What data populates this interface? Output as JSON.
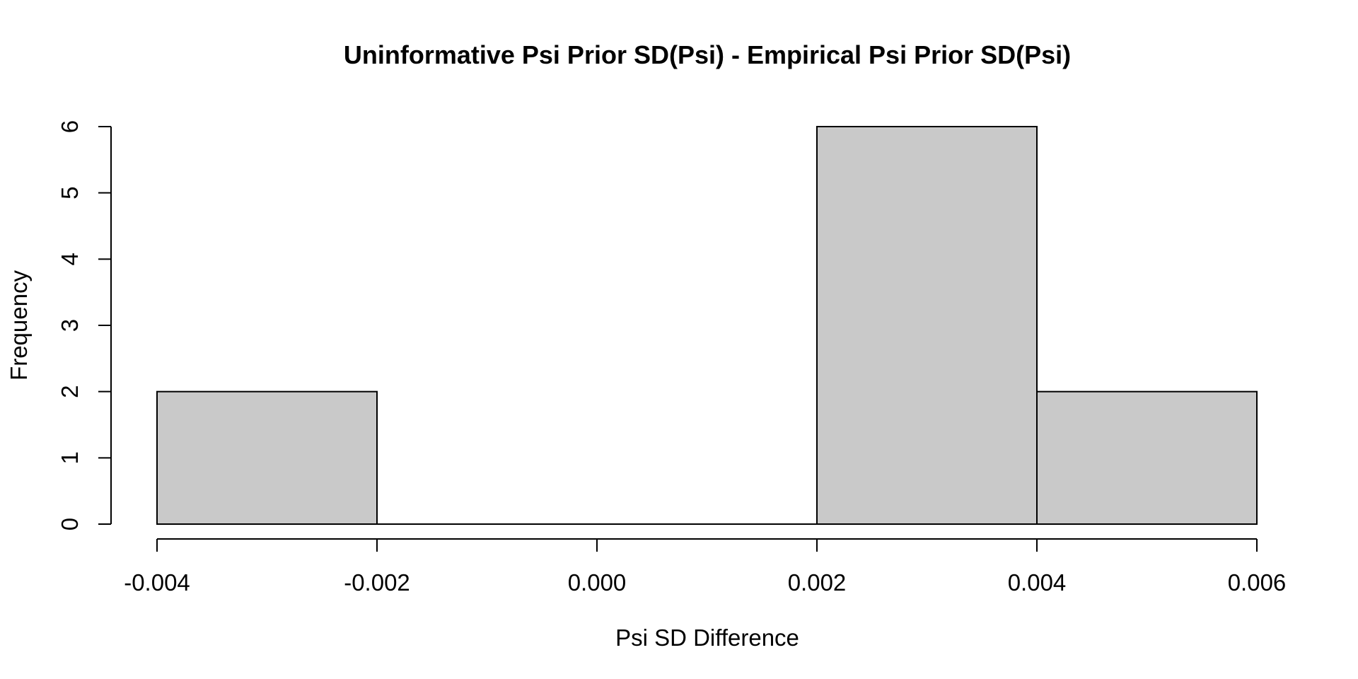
{
  "chart_data": {
    "type": "bar",
    "subtype": "histogram",
    "title": "Uninformative Psi Prior SD(Psi) - Empirical Psi Prior SD(Psi)",
    "xlabel": "Psi SD Difference",
    "ylabel": "Frequency",
    "bins": {
      "breaks": [
        -0.004,
        -0.002,
        0.0,
        0.002,
        0.004,
        0.006
      ],
      "counts": [
        2,
        0,
        0,
        6,
        2
      ]
    },
    "x_ticks": [
      -0.004,
      -0.002,
      0.0,
      0.002,
      0.004,
      0.006
    ],
    "x_tick_labels": [
      "-0.004",
      "-0.002",
      "0.000",
      "0.002",
      "0.004",
      "0.006"
    ],
    "y_ticks": [
      0,
      1,
      2,
      3,
      4,
      5,
      6
    ],
    "y_tick_labels": [
      "0",
      "1",
      "2",
      "3",
      "4",
      "5",
      "6"
    ],
    "xlim": [
      -0.004,
      0.006
    ],
    "ylim": [
      0,
      6
    ],
    "grid": false,
    "legend": null,
    "colors": {
      "bar_fill": "#C9C9C9",
      "bar_stroke": "#000000",
      "axis_stroke": "#000000",
      "text": "#000000",
      "background": "#FFFFFF"
    }
  }
}
